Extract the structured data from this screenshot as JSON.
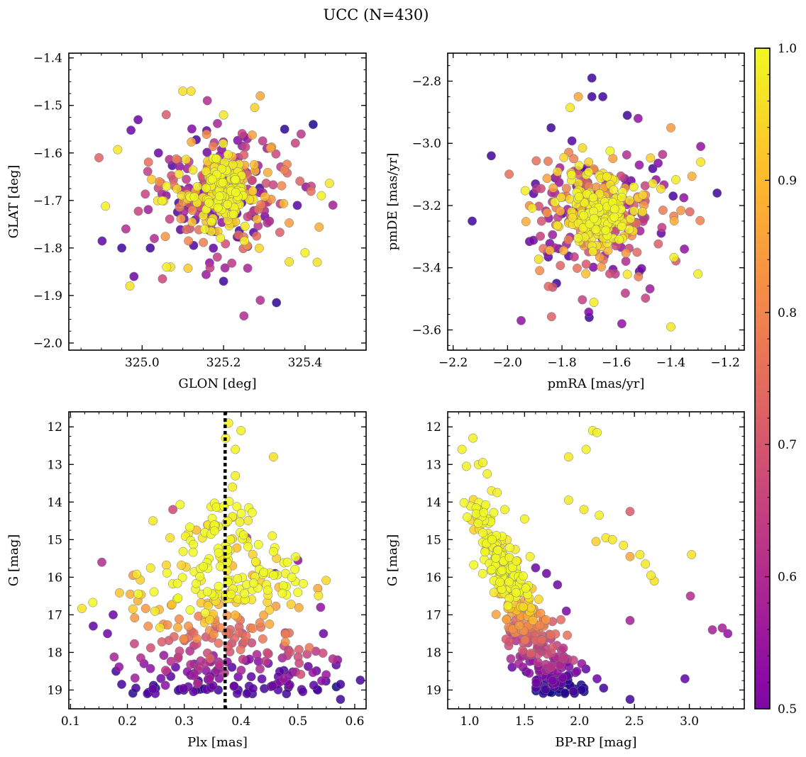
{
  "figure": {
    "title": "UCC (N=430)"
  },
  "colorbar": {
    "min": 0.5,
    "max": 1.0,
    "ticks": [
      0.5,
      0.6,
      0.7,
      0.8,
      0.9,
      1.0
    ],
    "tick_labels": [
      "0.5",
      "0.6",
      "0.7",
      "0.8",
      "0.9",
      "1.0"
    ],
    "colormap": "plasma"
  },
  "chart_data": [
    {
      "id": "sky",
      "type": "scatter",
      "xlabel": "GLON [deg]",
      "ylabel": "GLAT [deg]",
      "xlim": [
        324.82,
        325.55
      ],
      "ylim": [
        -2.015,
        -1.39
      ],
      "xticks": [
        325.0,
        325.2,
        325.4
      ],
      "xtick_labels": [
        "325.0",
        "325.2",
        "325.4"
      ],
      "yticks": [
        -2.0,
        -1.9,
        -1.8,
        -1.7,
        -1.6,
        -1.5,
        -1.4
      ],
      "ytick_labels": [
        "−2.0",
        "−1.9",
        "−1.8",
        "−1.7",
        "−1.6",
        "−1.5",
        "−1.4"
      ],
      "minor_x": 0.05,
      "minor_y": 0.025,
      "points": [
        [
          324.91,
          -1.712,
          0.99
        ],
        [
          324.95,
          -1.8,
          0.55
        ],
        [
          324.96,
          -1.76,
          0.7
        ],
        [
          324.94,
          -1.593,
          0.98
        ],
        [
          324.97,
          -1.88,
          0.97
        ],
        [
          324.99,
          -1.53,
          0.6
        ],
        [
          325.02,
          -1.8,
          0.55
        ],
        [
          325.03,
          -1.78,
          0.7
        ],
        [
          325.06,
          -1.67,
          0.99
        ],
        [
          325.1,
          -1.47,
          0.97
        ],
        [
          325.12,
          -1.47,
          0.97
        ],
        [
          325.16,
          -1.49,
          0.7
        ],
        [
          325.2,
          -1.52,
          0.98
        ],
        [
          325.29,
          -1.48,
          0.9
        ],
        [
          325.35,
          -1.55,
          0.53
        ],
        [
          325.42,
          -1.54,
          0.52
        ],
        [
          325.46,
          -1.664,
          0.98
        ],
        [
          325.44,
          -1.69,
          0.99
        ],
        [
          325.4,
          -1.81,
          0.99
        ],
        [
          325.43,
          -1.83,
          0.97
        ],
        [
          325.33,
          -1.915,
          0.53
        ],
        [
          325.29,
          -1.91,
          0.7
        ],
        [
          325.25,
          -1.943,
          0.7
        ],
        [
          325.2,
          -1.87,
          0.55
        ],
        [
          325.05,
          -1.865,
          0.75
        ],
        [
          325.07,
          -1.84,
          0.97
        ],
        [
          324.98,
          -1.86,
          0.6
        ],
        [
          325.04,
          -1.6,
          0.6
        ],
        [
          325.06,
          -1.84,
          0.99
        ]
      ]
    },
    {
      "id": "pm",
      "type": "scatter",
      "xlabel": "pmRA [mas/yr]",
      "ylabel": "pmDE [mas/yr]",
      "xlim": [
        -2.22,
        -1.13
      ],
      "ylim": [
        -3.665,
        -2.71
      ],
      "xticks": [
        -2.2,
        -2.0,
        -1.8,
        -1.6,
        -1.4,
        -1.2
      ],
      "xtick_labels": [
        "−2.2",
        "−2.0",
        "−1.8",
        "−1.6",
        "−1.4",
        "−1.2"
      ],
      "yticks": [
        -3.6,
        -3.4,
        -3.2,
        -3.0,
        -2.8
      ],
      "ytick_labels": [
        "−3.6",
        "−3.4",
        "−3.2",
        "−3.0",
        "−2.8"
      ],
      "minor_x": 0.05,
      "minor_y": 0.05,
      "points": [
        [
          -1.69,
          -2.79,
          0.55
        ],
        [
          -1.74,
          -2.85,
          0.9
        ],
        [
          -1.69,
          -2.85,
          0.55
        ],
        [
          -1.84,
          -2.95,
          0.55
        ],
        [
          -1.77,
          -2.885,
          0.98
        ],
        [
          -1.65,
          -2.85,
          0.55
        ],
        [
          -2.13,
          -3.25,
          0.55
        ],
        [
          -2.06,
          -3.04,
          0.55
        ],
        [
          -1.95,
          -3.57,
          0.65
        ],
        [
          -1.7,
          -3.56,
          0.55
        ],
        [
          -1.58,
          -3.58,
          0.65
        ],
        [
          -1.4,
          -3.59,
          0.98
        ],
        [
          -1.23,
          -3.16,
          0.55
        ],
        [
          -1.29,
          -3.01,
          0.65
        ],
        [
          -1.29,
          -3.06,
          0.98
        ],
        [
          -1.3,
          -3.42,
          0.99
        ],
        [
          -1.35,
          -3.34,
          0.65
        ],
        [
          -1.33,
          -3.22,
          0.8
        ],
        [
          -1.52,
          -2.92,
          0.65
        ],
        [
          -1.4,
          -2.95,
          0.88
        ],
        [
          -1.56,
          -2.91,
          0.55
        ],
        [
          -1.82,
          -3.45,
          0.55
        ],
        [
          -1.85,
          -3.46,
          0.8
        ]
      ]
    },
    {
      "id": "plx",
      "type": "scatter",
      "xlabel": "Plx [mas]",
      "ylabel": "G [mag]",
      "xlim": [
        0.097,
        0.62
      ],
      "ylim": [
        19.5,
        11.6
      ],
      "xticks": [
        0.1,
        0.2,
        0.3,
        0.4,
        0.5,
        0.6
      ],
      "xtick_labels": [
        "0.1",
        "0.2",
        "0.3",
        "0.4",
        "0.5",
        "0.6"
      ],
      "yticks": [
        12,
        13,
        14,
        15,
        16,
        17,
        18,
        19
      ],
      "ytick_labels": [
        "12",
        "13",
        "14",
        "15",
        "16",
        "17",
        "18",
        "19"
      ],
      "minor_x": 0.025,
      "minor_y": 0.25,
      "vline": 0.372,
      "points": [
        [
          0.373,
          12.3,
          0.99
        ],
        [
          0.378,
          11.9,
          0.99
        ],
        [
          0.4,
          12.1,
          0.99
        ],
        [
          0.39,
          12.6,
          0.99
        ],
        [
          0.457,
          12.8,
          0.97
        ],
        [
          0.39,
          13.3,
          0.99
        ],
        [
          0.385,
          13.6,
          0.99
        ],
        [
          0.14,
          17.3,
          0.58
        ],
        [
          0.155,
          15.6,
          0.7
        ],
        [
          0.165,
          17.5,
          0.6
        ],
        [
          0.175,
          17.0,
          0.6
        ],
        [
          0.18,
          18.5,
          0.55
        ],
        [
          0.19,
          18.85,
          0.55
        ],
        [
          0.21,
          15.95,
          0.88
        ],
        [
          0.215,
          18.95,
          0.55
        ],
        [
          0.28,
          14.2,
          0.75
        ],
        [
          0.245,
          14.5,
          0.98
        ],
        [
          0.275,
          14.95,
          0.97
        ],
        [
          0.41,
          14.95,
          0.7
        ],
        [
          0.455,
          14.9,
          0.99
        ],
        [
          0.535,
          16.3,
          0.9
        ],
        [
          0.54,
          16.8,
          0.65
        ],
        [
          0.545,
          17.5,
          0.6
        ],
        [
          0.57,
          18.2,
          0.65
        ],
        [
          0.575,
          18.85,
          0.55
        ],
        [
          0.575,
          19.25,
          0.55
        ],
        [
          0.535,
          19.0,
          0.55
        ],
        [
          0.48,
          19.1,
          0.55
        ],
        [
          0.42,
          19.1,
          0.55
        ],
        [
          0.5,
          15.55,
          0.65
        ],
        [
          0.46,
          15.9,
          0.55
        ],
        [
          0.395,
          19.0,
          0.55
        ],
        [
          0.36,
          19.0,
          0.55
        ]
      ]
    },
    {
      "id": "cmd",
      "type": "scatter",
      "xlabel": "BP-RP [mag]",
      "ylabel": "G [mag]",
      "xlim": [
        0.8,
        3.5
      ],
      "ylim": [
        19.5,
        11.6
      ],
      "xticks": [
        1.0,
        1.5,
        2.0,
        2.5,
        3.0
      ],
      "xtick_labels": [
        "1.0",
        "1.5",
        "2.0",
        "2.5",
        "3.0"
      ],
      "yticks": [
        12,
        13,
        14,
        15,
        16,
        17,
        18,
        19
      ],
      "ytick_labels": [
        "12",
        "13",
        "14",
        "15",
        "16",
        "17",
        "18",
        "19"
      ],
      "minor_x": 0.1,
      "minor_y": 0.25,
      "points": [
        [
          0.93,
          12.6,
          0.99
        ],
        [
          1.03,
          12.3,
          0.99
        ],
        [
          0.97,
          13.05,
          0.99
        ],
        [
          1.08,
          13.0,
          0.99
        ],
        [
          1.12,
          12.95,
          0.99
        ],
        [
          1.16,
          13.25,
          0.99
        ],
        [
          2.12,
          12.1,
          0.99
        ],
        [
          2.16,
          12.15,
          0.99
        ],
        [
          2.06,
          12.6,
          0.99
        ],
        [
          1.9,
          12.8,
          0.98
        ],
        [
          1.9,
          13.95,
          0.98
        ],
        [
          2.04,
          14.2,
          0.98
        ],
        [
          2.18,
          14.35,
          0.99
        ],
        [
          2.46,
          14.25,
          0.78
        ],
        [
          2.24,
          14.95,
          0.98
        ],
        [
          2.3,
          15.0,
          0.98
        ],
        [
          2.4,
          15.15,
          0.98
        ],
        [
          2.15,
          15.05,
          0.95
        ],
        [
          2.46,
          15.45,
          0.9
        ],
        [
          2.55,
          15.4,
          0.98
        ],
        [
          2.6,
          15.65,
          0.98
        ],
        [
          2.65,
          15.95,
          0.98
        ],
        [
          2.68,
          16.1,
          0.97
        ],
        [
          3.02,
          15.4,
          0.97
        ],
        [
          3.01,
          16.5,
          0.7
        ],
        [
          2.46,
          17.15,
          0.68
        ],
        [
          3.21,
          17.4,
          0.68
        ],
        [
          3.3,
          17.35,
          0.68
        ],
        [
          3.35,
          17.5,
          0.65
        ],
        [
          2.96,
          18.7,
          0.58
        ],
        [
          2.46,
          19.25,
          0.55
        ],
        [
          2.22,
          18.95,
          0.55
        ],
        [
          2.16,
          18.7,
          0.6
        ],
        [
          2.02,
          18.3,
          0.65
        ],
        [
          1.2,
          13.7,
          0.99
        ],
        [
          1.25,
          13.75,
          0.99
        ],
        [
          1.32,
          14.2,
          0.99
        ],
        [
          1.5,
          14.45,
          0.99
        ],
        [
          1.55,
          15.45,
          0.99
        ],
        [
          1.6,
          15.75,
          0.6
        ],
        [
          1.7,
          15.9,
          0.6
        ],
        [
          1.8,
          16.2,
          0.6
        ],
        [
          1.88,
          16.9,
          0.62
        ]
      ]
    }
  ]
}
